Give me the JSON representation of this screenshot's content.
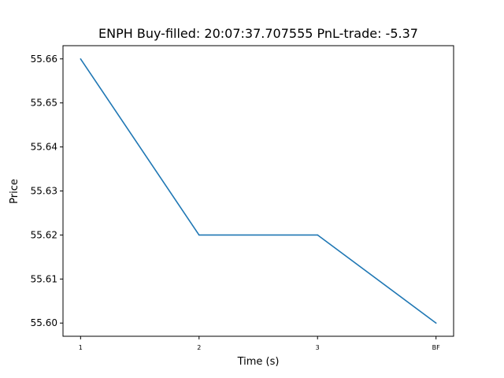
{
  "chart_data": {
    "type": "line",
    "title": "ENPH  Buy-filled:  20:07:37.707555  PnL-trade:  -5.37",
    "xlabel": "Time (s)",
    "ylabel": "Price",
    "categories": [
      "1",
      "2",
      "3",
      "BF"
    ],
    "series": [
      {
        "values": [
          55.66,
          55.62,
          55.62,
          55.6
        ],
        "color": "#1f77b4"
      }
    ],
    "yticks": [
      "55.60",
      "55.61",
      "55.62",
      "55.63",
      "55.64",
      "55.65",
      "55.66"
    ],
    "ylim": [
      55.597,
      55.663
    ],
    "grid": false,
    "legend": "none"
  }
}
